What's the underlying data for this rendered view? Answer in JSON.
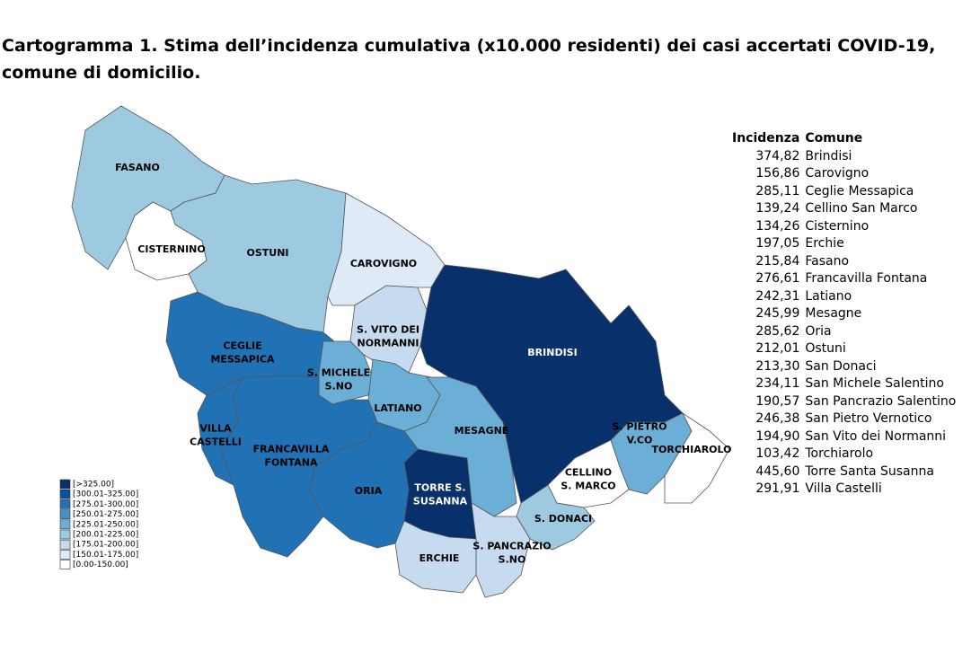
{
  "title": [
    "Cartogramma 1. Stima dell’incidenza cumulativa (x10.000 residenti) dei casi accertati COVID-19,",
    "comune di domicilio."
  ],
  "regions": [
    {
      "lines": [
        "FASANO"
      ],
      "color": "#9ecae1"
    },
    {
      "lines": [
        "CISTERNINO"
      ],
      "color": "#ffffff"
    },
    {
      "lines": [
        "OSTUNI"
      ],
      "color": "#9ecae1"
    },
    {
      "lines": [
        "CAROVIGNO"
      ],
      "color": "#deebf7"
    },
    {
      "lines": [
        "S. VITO DEI",
        "NORMANNI"
      ],
      "color": "#c6dbef"
    },
    {
      "lines": [
        "BRINDISI"
      ],
      "color": "#08306b"
    },
    {
      "lines": [
        "CEGLIE",
        "MESSAPICA"
      ],
      "color": "#2171b5"
    },
    {
      "lines": [
        "S. MICHELE",
        "S.NO"
      ],
      "color": "#6baed6"
    },
    {
      "lines": [
        "LATIANO"
      ],
      "color": "#6baed6"
    },
    {
      "lines": [
        "MESAGNE"
      ],
      "color": "#6baed6"
    },
    {
      "lines": [
        "S. PIETRO",
        "V.CO"
      ],
      "color": "#6baed6"
    },
    {
      "lines": [
        "TORCHIAROLO"
      ],
      "color": "#ffffff"
    },
    {
      "lines": [
        "CELLINO",
        "S. MARCO"
      ],
      "color": "#ffffff"
    },
    {
      "lines": [
        "S. DONACI"
      ],
      "color": "#9ecae1"
    },
    {
      "lines": [
        "TORRE S.",
        "SUSANNA"
      ],
      "color": "#08306b"
    },
    {
      "lines": [
        "S. PANCRAZIO",
        "S.NO"
      ],
      "color": "#c6dbef"
    },
    {
      "lines": [
        "ERCHIE"
      ],
      "color": "#c6dbef"
    },
    {
      "lines": [
        "ORIA"
      ],
      "color": "#2171b5"
    },
    {
      "lines": [
        "FRANCAVILLA",
        "FONTANA"
      ],
      "color": "#2171b5"
    },
    {
      "lines": [
        "VILLA",
        "CASTELLI"
      ],
      "color": "#2171b5"
    }
  ],
  "legend": [
    {
      "label": "[>325.00]",
      "color": "#08306b"
    },
    {
      "label": "[300.01-325.00]",
      "color": "#08519c"
    },
    {
      "label": "[275.01-300.00]",
      "color": "#2171b5"
    },
    {
      "label": "[250.01-275.00]",
      "color": "#4292c6"
    },
    {
      "label": "[225.01-250.00]",
      "color": "#6baed6"
    },
    {
      "label": "[200.01-225.00]",
      "color": "#9ecae1"
    },
    {
      "label": "[175.01-200.00]",
      "color": "#c6dbef"
    },
    {
      "label": "[150.01-175.00]",
      "color": "#deebf7"
    },
    {
      "label": "[0.00-150.00]",
      "color": "#ffffff"
    }
  ],
  "table": {
    "header": [
      "Incidenza",
      "Comune"
    ],
    "rows": [
      [
        "374,82",
        "Brindisi"
      ],
      [
        "156,86",
        "Carovigno"
      ],
      [
        "285,11",
        "Ceglie Messapica"
      ],
      [
        "139,24",
        "Cellino San Marco"
      ],
      [
        "134,26",
        "Cisternino"
      ],
      [
        "197,05",
        "Erchie"
      ],
      [
        "215,84",
        "Fasano"
      ],
      [
        "276,61",
        "Francavilla Fontana"
      ],
      [
        "242,31",
        "Latiano"
      ],
      [
        "245,99",
        "Mesagne"
      ],
      [
        "285,62",
        "Oria"
      ],
      [
        "212,01",
        "Ostuni"
      ],
      [
        "213,30",
        "San Donaci"
      ],
      [
        "234,11",
        "San Michele Salentino"
      ],
      [
        "190,57",
        "San Pancrazio Salentino"
      ],
      [
        "246,38",
        "San Pietro Vernotico"
      ],
      [
        "194,90",
        "San Vito dei Normanni"
      ],
      [
        "103,42",
        "Torchiarolo"
      ],
      [
        "445,60",
        "Torre Santa Susanna"
      ],
      [
        "291,91",
        "Villa Castelli"
      ]
    ]
  }
}
